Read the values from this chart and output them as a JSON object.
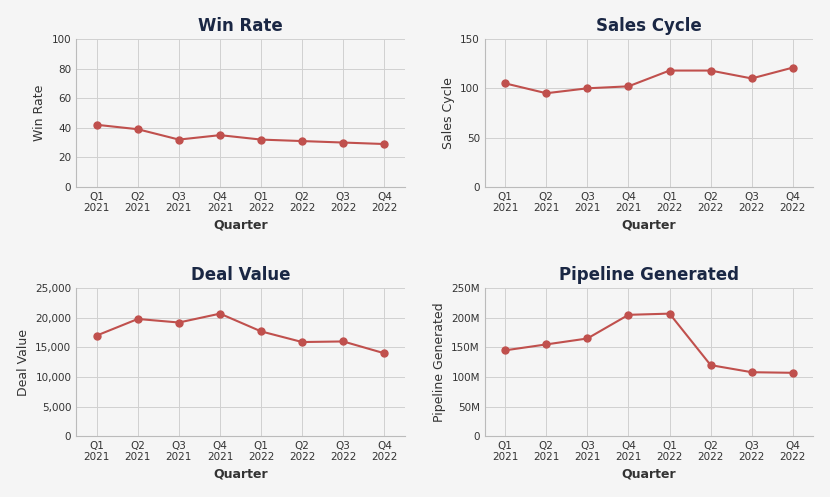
{
  "quarters": [
    "Q1\n2021",
    "Q2\n2021",
    "Q3\n2021",
    "Q4\n2021",
    "Q1\n2022",
    "Q2\n2022",
    "Q3\n2022",
    "Q4\n2022"
  ],
  "win_rate": [
    42,
    39,
    32,
    35,
    32,
    31,
    30,
    29
  ],
  "sales_cycle": [
    105,
    95,
    100,
    102,
    118,
    118,
    110,
    121
  ],
  "deal_value": [
    17000,
    19800,
    19200,
    20700,
    17700,
    15900,
    16000,
    14000
  ],
  "pipeline_generated": [
    145,
    155,
    165,
    205,
    207,
    120,
    108,
    107
  ],
  "line_color": "#c0504d",
  "marker_color": "#c0504d",
  "bg_color": "#f5f5f5",
  "grid_color": "#d0d0d0",
  "title_color": "#1a2744",
  "label_color": "#333333",
  "tick_color": "#333333",
  "titles": [
    "Win Rate",
    "Sales Cycle",
    "Deal Value",
    "Pipeline Generated"
  ],
  "ylabels": [
    "Win Rate",
    "Sales Cycle",
    "Deal Value",
    "Pipeline Generated"
  ],
  "xlabel": "Quarter",
  "win_rate_ylim": [
    0,
    100
  ],
  "win_rate_yticks": [
    0,
    20,
    40,
    60,
    80,
    100
  ],
  "sales_cycle_ylim": [
    0,
    150
  ],
  "sales_cycle_yticks": [
    0,
    50,
    100,
    150
  ],
  "deal_value_ylim": [
    0,
    25000
  ],
  "deal_value_yticks": [
    0,
    5000,
    10000,
    15000,
    20000,
    25000
  ],
  "pipeline_ylim": [
    0,
    250
  ],
  "pipeline_yticks": [
    0,
    50,
    100,
    150,
    200,
    250
  ],
  "pipeline_yticklabels": [
    "0",
    "50M",
    "100M",
    "150M",
    "200M",
    "250M"
  ],
  "title_fontsize": 12,
  "label_fontsize": 9,
  "tick_fontsize": 7.5,
  "xlabel_fontsize": 9
}
